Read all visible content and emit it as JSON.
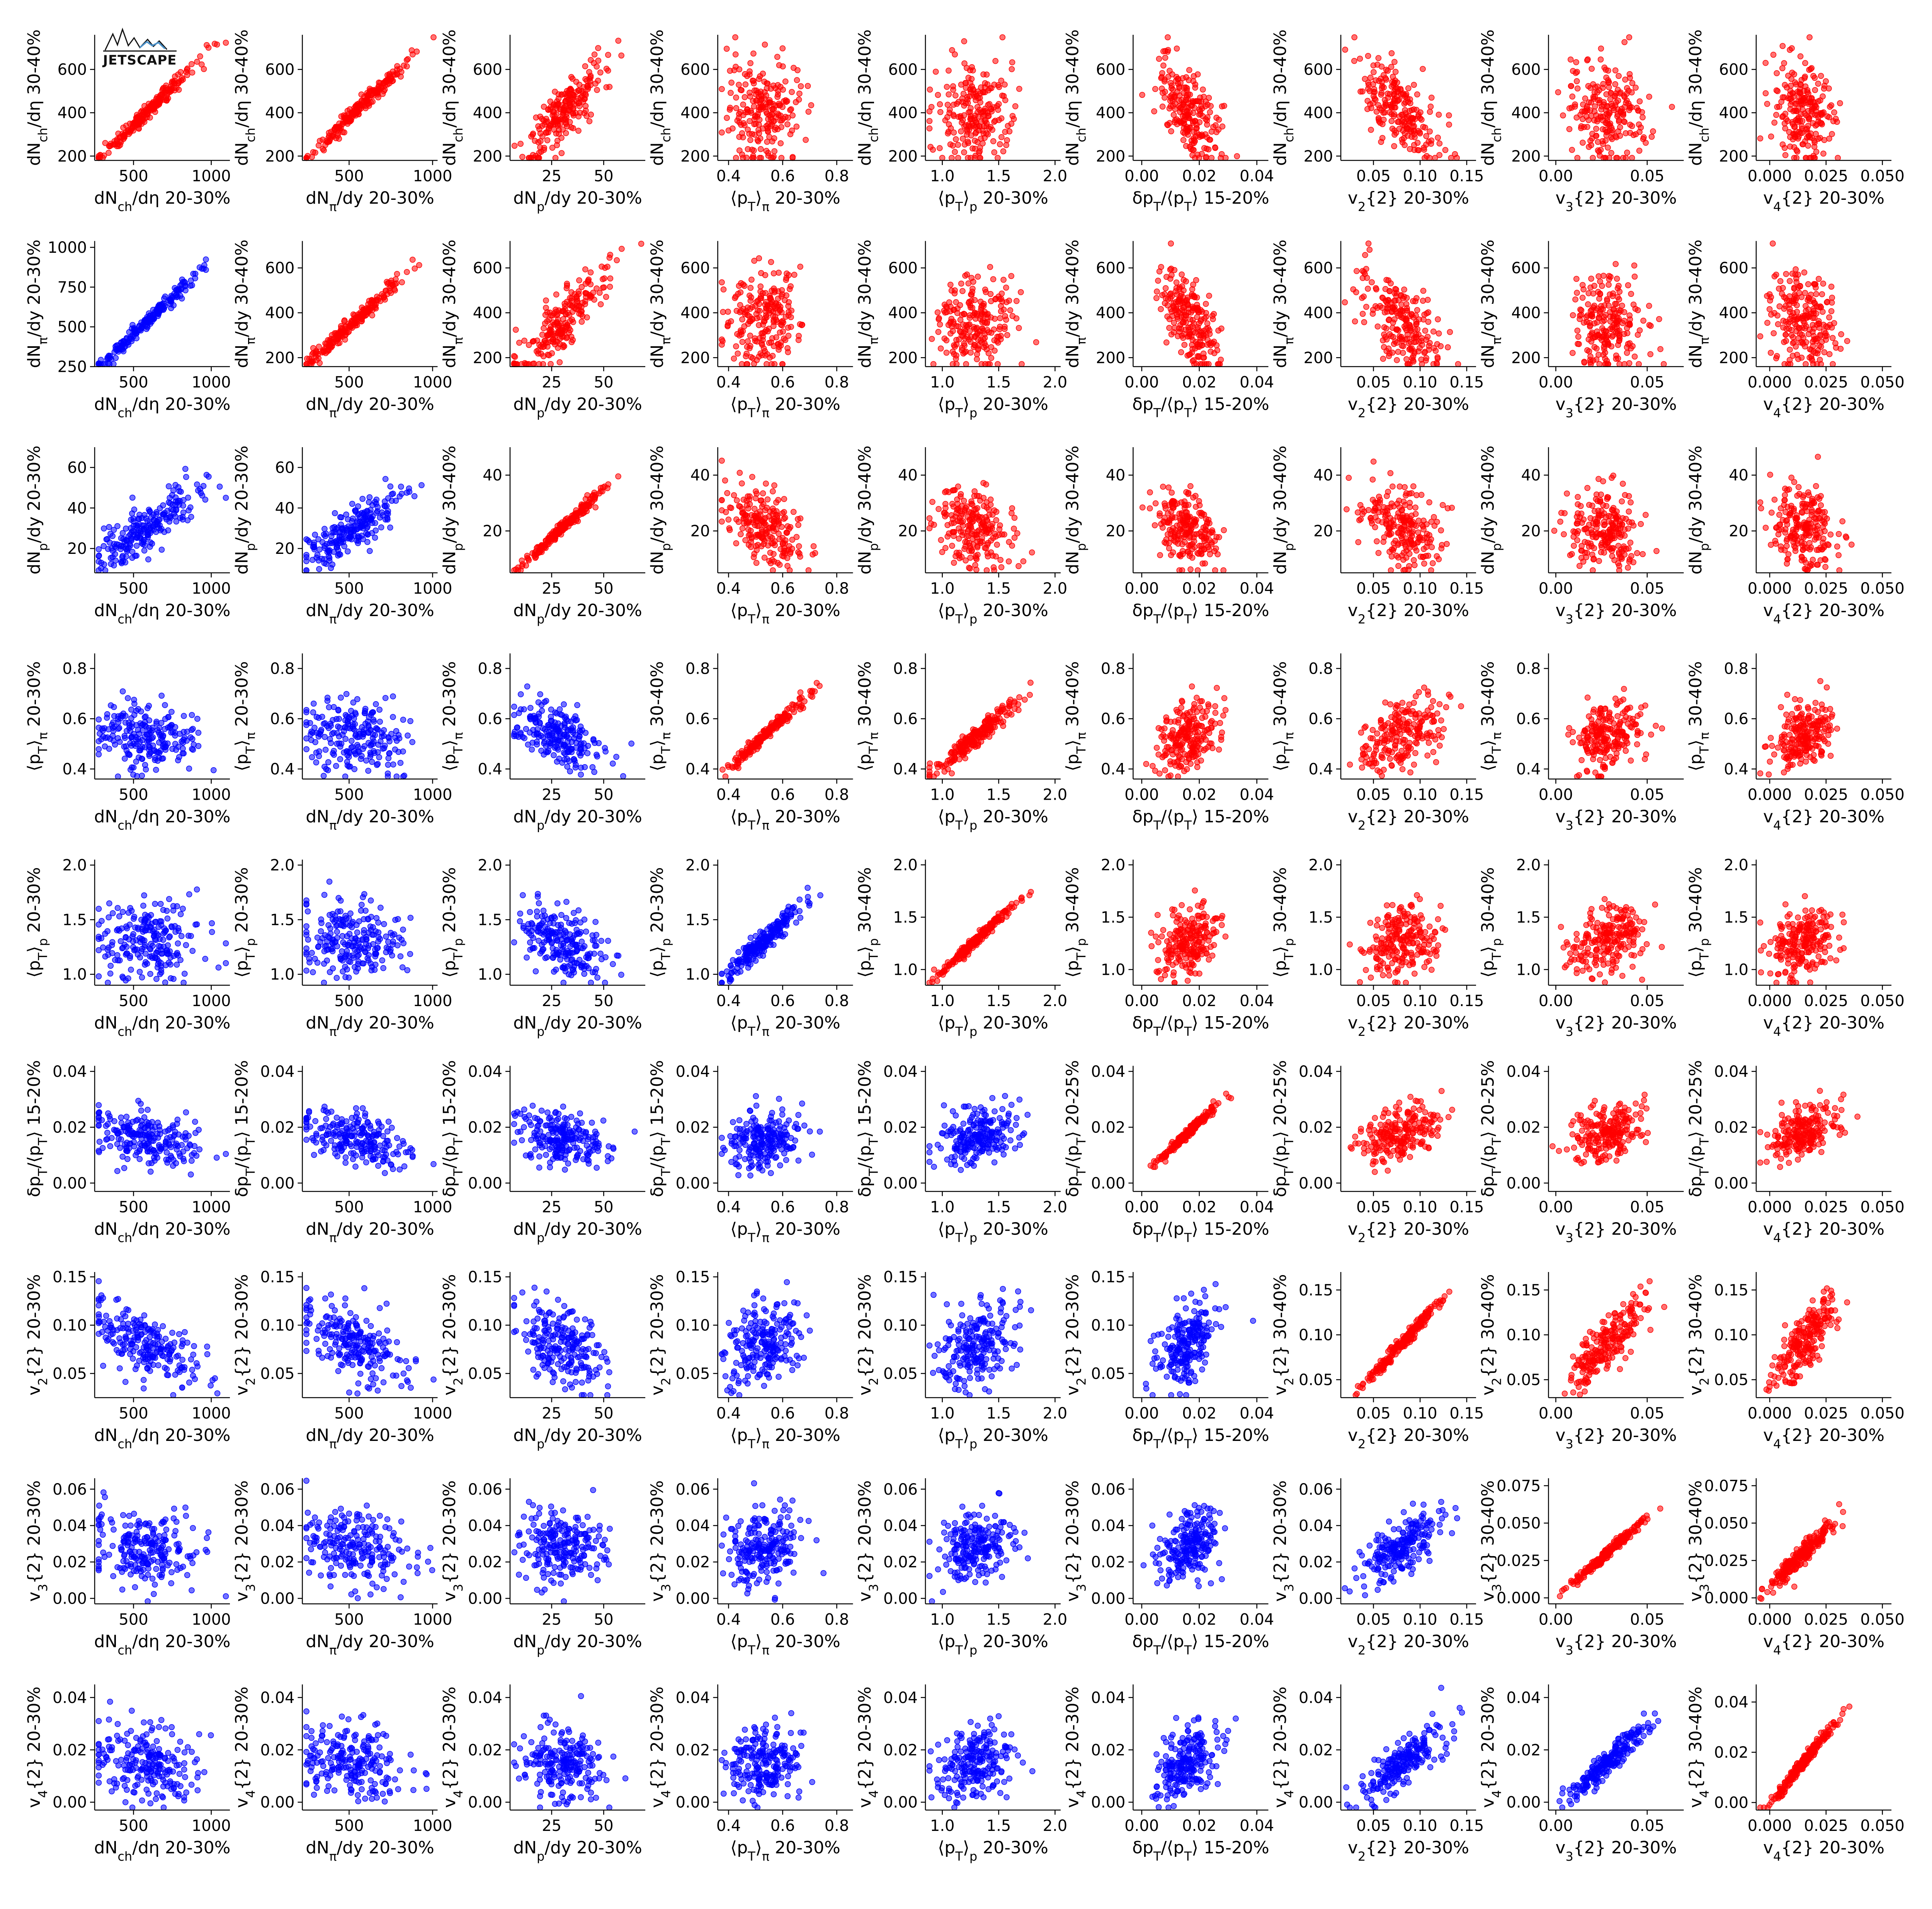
{
  "logo": {
    "text": "JETSCAPE"
  },
  "colors": {
    "above_diagonal": "#ff0000",
    "below_diagonal": "#0000ff",
    "logo_peaks": "#4a90c8"
  },
  "observables": [
    {
      "key": "dNch",
      "xlabel": "dN_ch/dη 20-30%",
      "ylabel_20": "dN_ch/dη 20-30%",
      "ylabel_30": "dN_ch/dη 30-40%",
      "x_ticks": [
        500,
        1000
      ],
      "x_range": [
        250,
        1120
      ],
      "y_ticks_20": [
        250,
        500,
        750,
        1000
      ],
      "y_range_20": [
        250,
        1040
      ],
      "y_ticks_30": [
        200,
        400,
        600
      ],
      "y_range_30": [
        180,
        760
      ],
      "mean_20": 580,
      "sd_20": 170,
      "mean_30": 400,
      "sd_30": 120
    },
    {
      "key": "dNpi",
      "xlabel": "dN_π/dy 20-30%",
      "ylabel_20": "dN_π/dy 20-30%",
      "ylabel_30": "dN_π/dy 30-40%",
      "x_ticks": [
        500,
        1000
      ],
      "x_range": [
        220,
        1030
      ],
      "y_ticks_20": [
        250,
        500,
        750,
        1000
      ],
      "y_range_20": [
        250,
        1040
      ],
      "y_ticks_30": [
        200,
        400,
        600
      ],
      "y_range_30": [
        160,
        720
      ],
      "mean_20": 530,
      "sd_20": 160,
      "mean_30": 360,
      "sd_30": 110
    },
    {
      "key": "dNp",
      "xlabel": "dN_p/dy 20-30%",
      "ylabel_20": "dN_p/dy 20-30%",
      "ylabel_30": "dN_p/dy 30-40%",
      "x_ticks": [
        25,
        50
      ],
      "x_range": [
        5,
        70
      ],
      "y_ticks_20": [
        20,
        40,
        60
      ],
      "y_range_20": [
        8,
        70
      ],
      "y_ticks_30": [
        20,
        40
      ],
      "y_range_30": [
        5,
        50
      ],
      "mean_20": 30,
      "sd_20": 10,
      "mean_30": 21,
      "sd_30": 7
    },
    {
      "key": "ptpi",
      "xlabel": "⟨p_T⟩_π 20-30%",
      "ylabel_20": "⟨p_T⟩_π 20-30%",
      "ylabel_30": "⟨p_T⟩_π 30-40%",
      "x_ticks": [
        0.4,
        0.6,
        0.8
      ],
      "x_range": [
        0.36,
        0.86
      ],
      "y_ticks_20": [
        0.4,
        0.6,
        0.8
      ],
      "y_range_20": [
        0.36,
        0.86
      ],
      "y_ticks_30": [
        0.4,
        0.6,
        0.8
      ],
      "y_range_30": [
        0.36,
        0.86
      ],
      "mean_20": 0.53,
      "sd_20": 0.07,
      "mean_30": 0.53,
      "sd_30": 0.07
    },
    {
      "key": "ptp",
      "xlabel": "⟨p_T⟩_p 20-30%",
      "ylabel_20": "⟨p_T⟩_p 20-30%",
      "ylabel_30": "⟨p_T⟩_p 30-40%",
      "x_ticks": [
        1.0,
        1.5,
        2.0
      ],
      "x_range": [
        0.85,
        2.05
      ],
      "y_ticks_20": [
        1.0,
        1.5,
        2.0
      ],
      "y_range_20": [
        0.9,
        2.05
      ],
      "y_ticks_30": [
        1.0,
        1.5,
        2.0
      ],
      "y_range_30": [
        0.85,
        2.05
      ],
      "mean_20": 1.3,
      "sd_20": 0.17,
      "mean_30": 1.28,
      "sd_30": 0.17
    },
    {
      "key": "dpt",
      "xlabel": "δp_T/⟨p_T⟩ 15-20%",
      "ylabel_20": "δp_T/⟨p_T⟩ 15-20%",
      "ylabel_30": "δp_T/⟨p_T⟩ 20-25%",
      "x_ticks": [
        0.0,
        0.02,
        0.04
      ],
      "x_range": [
        -0.003,
        0.044
      ],
      "y_ticks_20": [
        0.0,
        0.02,
        0.04
      ],
      "y_range_20": [
        -0.003,
        0.042
      ],
      "y_ticks_30": [
        0.0,
        0.02,
        0.04
      ],
      "y_range_30": [
        -0.003,
        0.042
      ],
      "mean_20": 0.016,
      "sd_20": 0.005,
      "mean_30": 0.018,
      "sd_30": 0.005
    },
    {
      "key": "v2",
      "xlabel": "v_2{2} 20-30%",
      "ylabel_20": "v_2{2} 20-30%",
      "ylabel_30": "v_2{2} 30-40%",
      "x_ticks": [
        0.05,
        0.1,
        0.15
      ],
      "x_range": [
        0.015,
        0.16
      ],
      "y_ticks_20": [
        0.05,
        0.1,
        0.15
      ],
      "y_range_20": [
        0.025,
        0.155
      ],
      "y_ticks_30": [
        0.05,
        0.1,
        0.15
      ],
      "y_range_30": [
        0.03,
        0.17
      ],
      "mean_20": 0.08,
      "sd_20": 0.022,
      "mean_30": 0.09,
      "sd_30": 0.025
    },
    {
      "key": "v3",
      "xlabel": "v_3{2} 20-30%",
      "ylabel_20": "v_3{2} 20-30%",
      "ylabel_30": "v_3{2} 30-40%",
      "x_ticks": [
        0.0,
        0.05
      ],
      "x_range": [
        -0.004,
        0.07
      ],
      "y_ticks_20": [
        0.0,
        0.02,
        0.04,
        0.06
      ],
      "y_range_20": [
        -0.003,
        0.066
      ],
      "y_ticks_30": [
        0.0,
        0.025,
        0.05,
        0.075
      ],
      "y_range_30": [
        -0.004,
        0.08
      ],
      "mean_20": 0.028,
      "sd_20": 0.01,
      "mean_30": 0.03,
      "sd_30": 0.011
    },
    {
      "key": "v4",
      "xlabel": "v_4{2} 20-30%",
      "ylabel_20": "v_4{2} 20-30%",
      "ylabel_30": "v_4{2} 30-40%",
      "x_ticks": [
        0.0,
        0.025,
        0.05
      ],
      "x_range": [
        -0.006,
        0.054
      ],
      "y_ticks_20": [
        0.0,
        0.02,
        0.04
      ],
      "y_range_20": [
        -0.003,
        0.045
      ],
      "y_ticks_30": [
        0.0,
        0.02,
        0.04
      ],
      "y_range_30": [
        -0.003,
        0.047
      ],
      "mean_20": 0.015,
      "sd_20": 0.007,
      "mean_30": 0.016,
      "sd_30": 0.008
    }
  ],
  "chart_data": {
    "type": "scatter",
    "title": "",
    "description_of_layout": "9x9 scatter-plot matrix; upper triangle (incl. diagonal) in red vs 30-40%/20-25% bins, lower triangle in blue vs 20-30%/15-20% bins",
    "correlations": [
      [
        0.99,
        0.99,
        0.85,
        0.0,
        0.0,
        -0.55,
        -0.6,
        -0.15,
        -0.2
      ],
      [
        0.99,
        0.99,
        0.85,
        0.0,
        0.0,
        -0.55,
        -0.6,
        -0.15,
        -0.2
      ],
      [
        0.85,
        0.85,
        0.99,
        -0.45,
        -0.25,
        -0.3,
        -0.35,
        -0.1,
        -0.15
      ],
      [
        -0.1,
        -0.1,
        -0.45,
        0.99,
        0.95,
        0.35,
        0.35,
        0.3,
        0.3
      ],
      [
        -0.05,
        -0.05,
        -0.25,
        0.95,
        0.99,
        0.35,
        0.35,
        0.3,
        0.3
      ],
      [
        -0.4,
        -0.4,
        -0.2,
        0.3,
        0.3,
        0.95,
        0.45,
        0.35,
        0.35
      ],
      [
        -0.6,
        -0.6,
        -0.35,
        0.3,
        0.3,
        0.45,
        0.99,
        0.75,
        0.8
      ],
      [
        -0.2,
        -0.2,
        -0.1,
        0.25,
        0.25,
        0.4,
        0.7,
        0.97,
        0.95
      ],
      [
        -0.2,
        -0.2,
        -0.15,
        0.25,
        0.25,
        0.4,
        0.8,
        0.93,
        0.98
      ]
    ],
    "points_per_panel": 220
  }
}
